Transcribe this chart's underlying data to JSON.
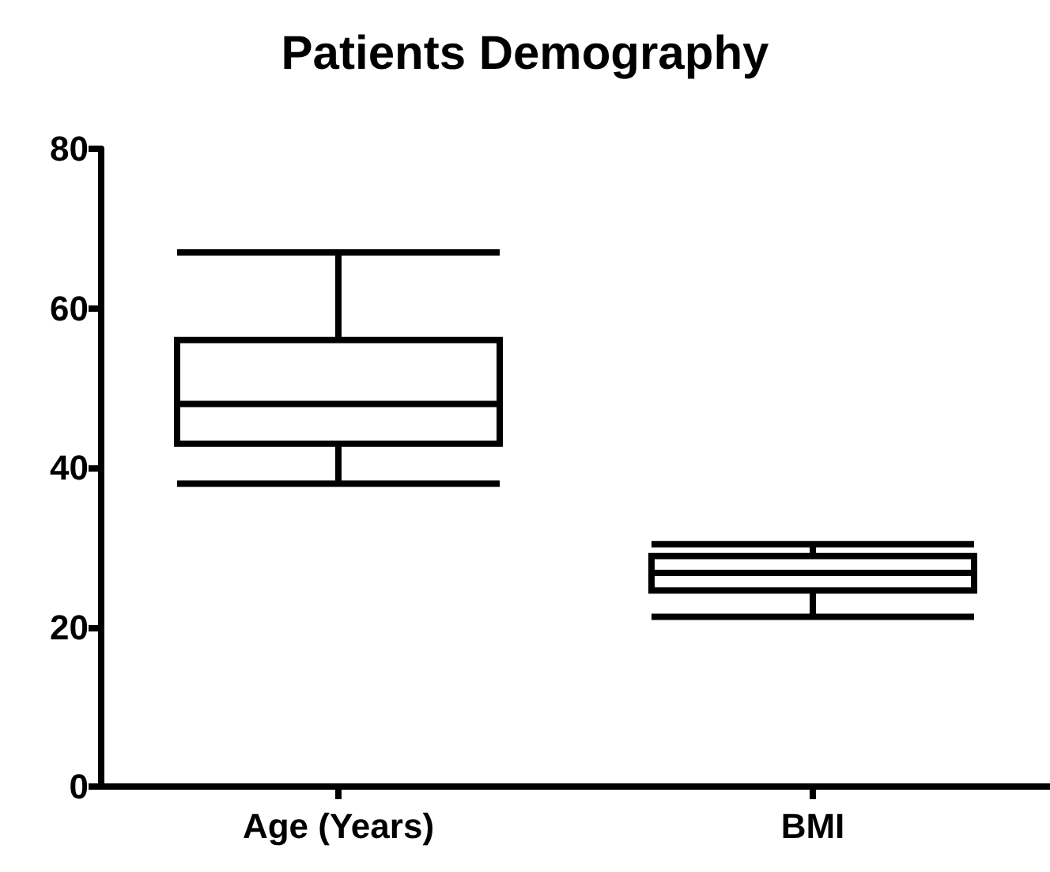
{
  "chart_data": {
    "type": "box",
    "title": "Patients Demography",
    "categories": [
      "Age (Years)",
      "BMI"
    ],
    "boxes": [
      {
        "low": 38,
        "q1": 43,
        "median": 48,
        "q3": 56,
        "high": 67
      },
      {
        "low": 21.3,
        "q1": 24.6,
        "median": 26.8,
        "q3": 28.9,
        "high": 30.4
      }
    ],
    "color": "#000000",
    "ylim": [
      0,
      80
    ],
    "yticks": [
      0,
      20,
      40,
      60,
      80
    ],
    "grid": false
  }
}
